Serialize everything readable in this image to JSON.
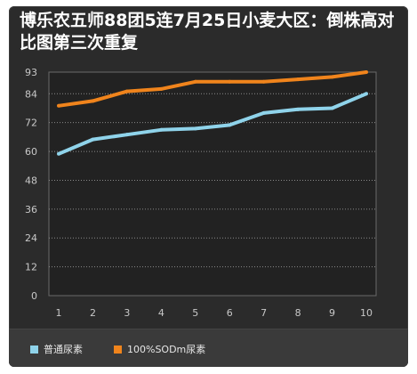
{
  "chart_data": {
    "type": "line",
    "title": "博乐农五师88团5连7月25日小麦大区：倒株高对比图第三次重复",
    "x": [
      1,
      2,
      3,
      4,
      5,
      6,
      7,
      8,
      9,
      10
    ],
    "yticks": [
      0,
      12,
      24,
      36,
      48,
      60,
      72,
      84,
      93
    ],
    "ylim": [
      0,
      93
    ],
    "grid": true,
    "legend_position": "bottom",
    "series": [
      {
        "name": "普通尿素",
        "color": "#8fd3ea",
        "values": [
          59,
          65,
          67,
          69,
          69.5,
          71,
          76,
          77.5,
          78,
          84
        ]
      },
      {
        "name": "100%SODm尿素",
        "color": "#f0841c",
        "values": [
          79,
          81,
          85,
          86,
          89,
          89,
          89,
          90,
          91,
          93
        ]
      }
    ]
  }
}
